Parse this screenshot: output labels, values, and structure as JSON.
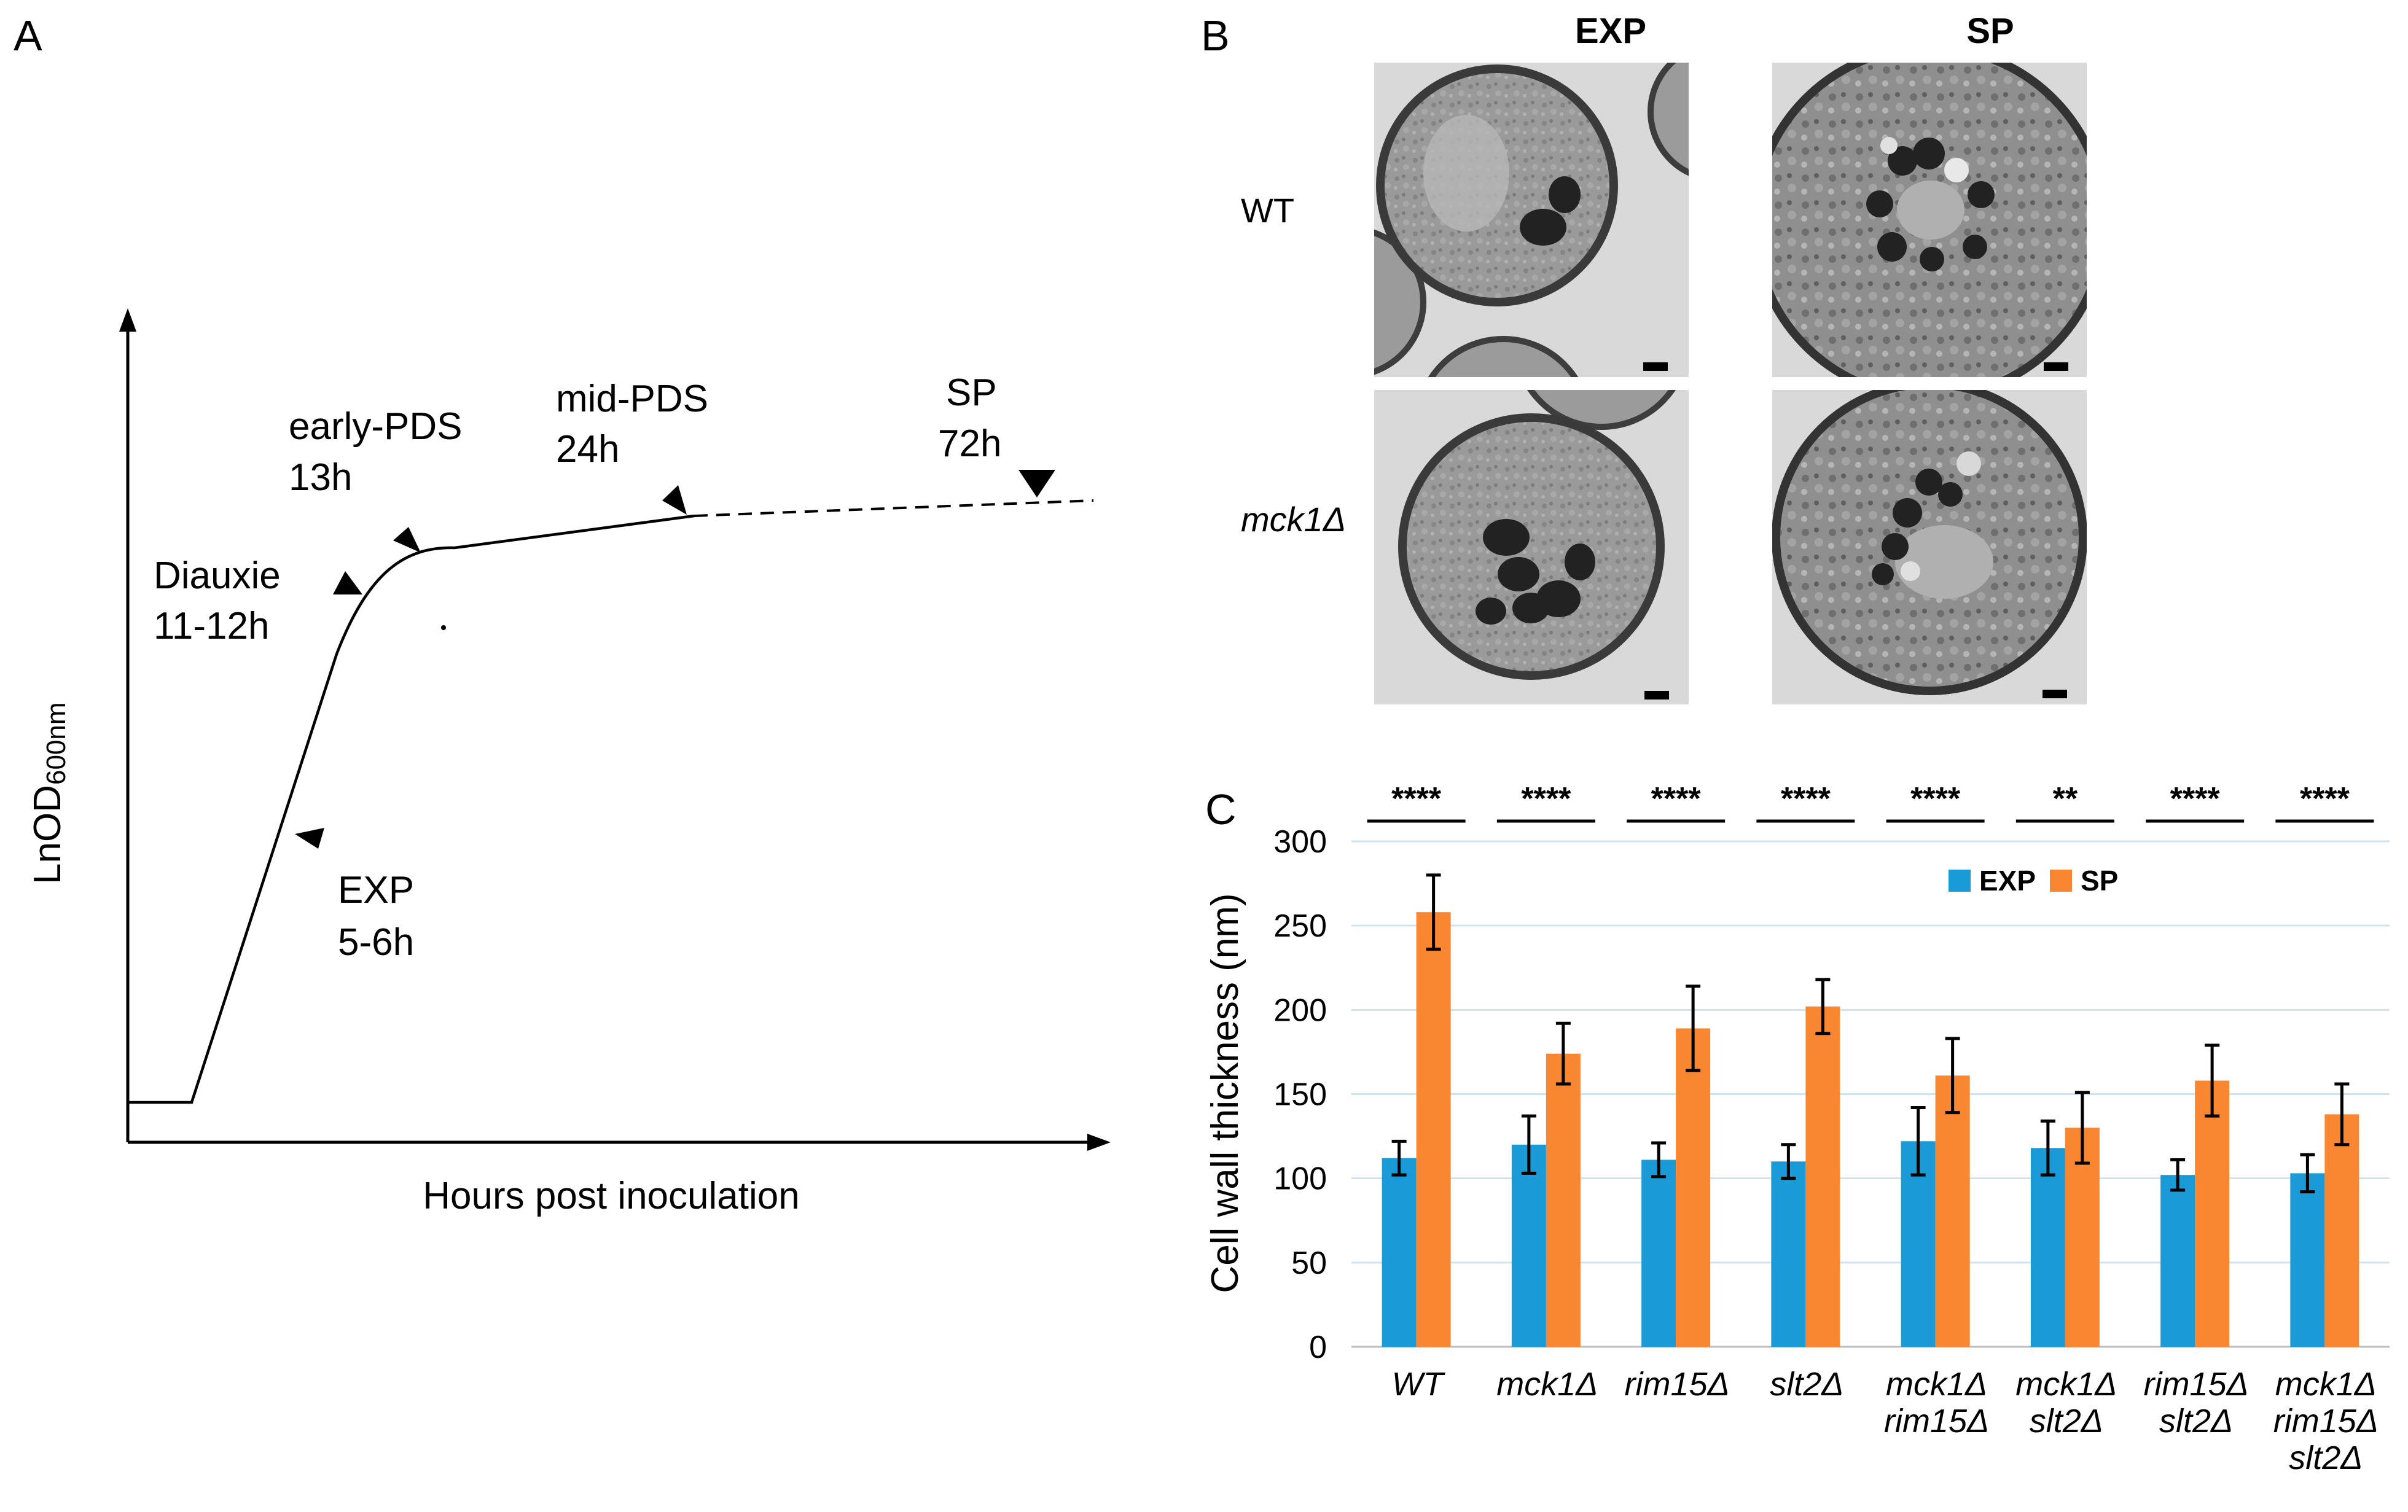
{
  "panel_a": {
    "letter": "A",
    "ylabel_main": "LnOD",
    "ylabel_sub": "600nm",
    "xlabel": "Hours post inoculation",
    "stages": [
      {
        "name": "EXP",
        "time": "5-6h"
      },
      {
        "name": "Diauxie",
        "time": "11-12h"
      },
      {
        "name": "early-PDS",
        "time": "13h"
      },
      {
        "name": "mid-PDS",
        "time": "24h"
      },
      {
        "name": "SP",
        "time": "72h"
      }
    ]
  },
  "panel_b": {
    "letter": "B",
    "col_headers": [
      "EXP",
      "SP"
    ],
    "row_labels": [
      "WT",
      "mck1Δ"
    ]
  },
  "panel_c": {
    "letter": "C"
  },
  "chart_data": {
    "type": "bar",
    "title": "",
    "xlabel": "",
    "ylabel": "Cell wall thickness (nm)",
    "ylim": [
      0,
      300
    ],
    "yticks": [
      0,
      50,
      100,
      150,
      200,
      250,
      300
    ],
    "grid": true,
    "legend_position": "top-right",
    "categories": [
      [
        "WT"
      ],
      [
        "mck1Δ"
      ],
      [
        "rim15Δ"
      ],
      [
        "slt2Δ"
      ],
      [
        "mck1Δ",
        "rim15Δ"
      ],
      [
        "mck1Δ",
        "slt2Δ"
      ],
      [
        "rim15Δ",
        "slt2Δ"
      ],
      [
        "mck1Δ",
        "rim15Δ",
        "slt2Δ"
      ]
    ],
    "series": [
      {
        "name": "EXP",
        "color": "#1a9ad6",
        "values": [
          112,
          120,
          111,
          110,
          122,
          118,
          102,
          103
        ],
        "errors": [
          10,
          17,
          10,
          10,
          20,
          16,
          9,
          11
        ]
      },
      {
        "name": "SP",
        "color": "#f98630",
        "values": [
          258,
          174,
          189,
          202,
          161,
          130,
          158,
          138
        ],
        "errors": [
          22,
          18,
          25,
          16,
          22,
          21,
          21,
          18
        ]
      }
    ],
    "significance": [
      "****",
      "****",
      "****",
      "****",
      "****",
      "**",
      "****",
      "****"
    ]
  }
}
